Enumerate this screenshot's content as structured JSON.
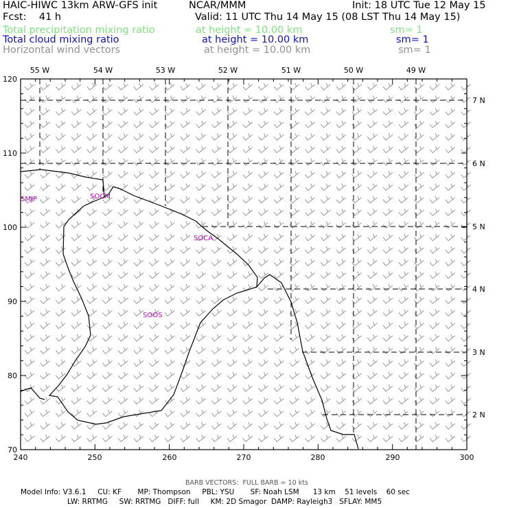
{
  "header": {
    "title": "HAIC-HIWC 13km ARW-GFS init",
    "org": "NCAR/MMM",
    "init": "Init: 18 UTC Tue 12 May 15",
    "fcst": "Fcst:    41 h",
    "valid": "Valid: 11 UTC Thu 14 May 15 (08 LST Thu 14 May 15)"
  },
  "fields": [
    {
      "name": "Total precipitation mixing ratio",
      "height": "at height = 10.00 km",
      "sm": "sm= 1",
      "color": "#80e080"
    },
    {
      "name": "Total cloud mixing ratio",
      "height": "at height = 10.00 km",
      "sm": "sm= 1",
      "color": "#1010c0"
    },
    {
      "name": "Horizontal wind vectors",
      "height": "at height = 10.00 km",
      "sm": "sm= 1",
      "color": "#909090"
    }
  ],
  "axes": {
    "x_ticks": [
      "240",
      "250",
      "260",
      "270",
      "280",
      "290",
      "300"
    ],
    "y_ticks": [
      "70",
      "80",
      "90",
      "100",
      "110",
      "120"
    ],
    "lon_labels": [
      "55 W",
      "54 W",
      "53 W",
      "52 W",
      "51 W",
      "50 W",
      "49 W"
    ],
    "lat_labels": [
      "7 N",
      "6 N",
      "5 N",
      "4 N",
      "3 N",
      "2 N"
    ]
  },
  "stations": [
    {
      "id": "SMJP"
    },
    {
      "id": "SOCM"
    },
    {
      "id": "SOCA"
    },
    {
      "id": "SOOS"
    }
  ],
  "footer": {
    "barb": "BARB VECTORS:  FULL BARB = 10 kts",
    "line1": "Model Info: V3.6.1     CU: KF       MP: Thompson     PBL: YSU       SF: Noah LSM      13 km    51 levels    60 sec",
    "line2": "LW: RRTMG     SW: RRTMG   DIFF: full     KM: 2D Smagor  DAMP: Rayleigh3   SFLAY: MM5"
  }
}
